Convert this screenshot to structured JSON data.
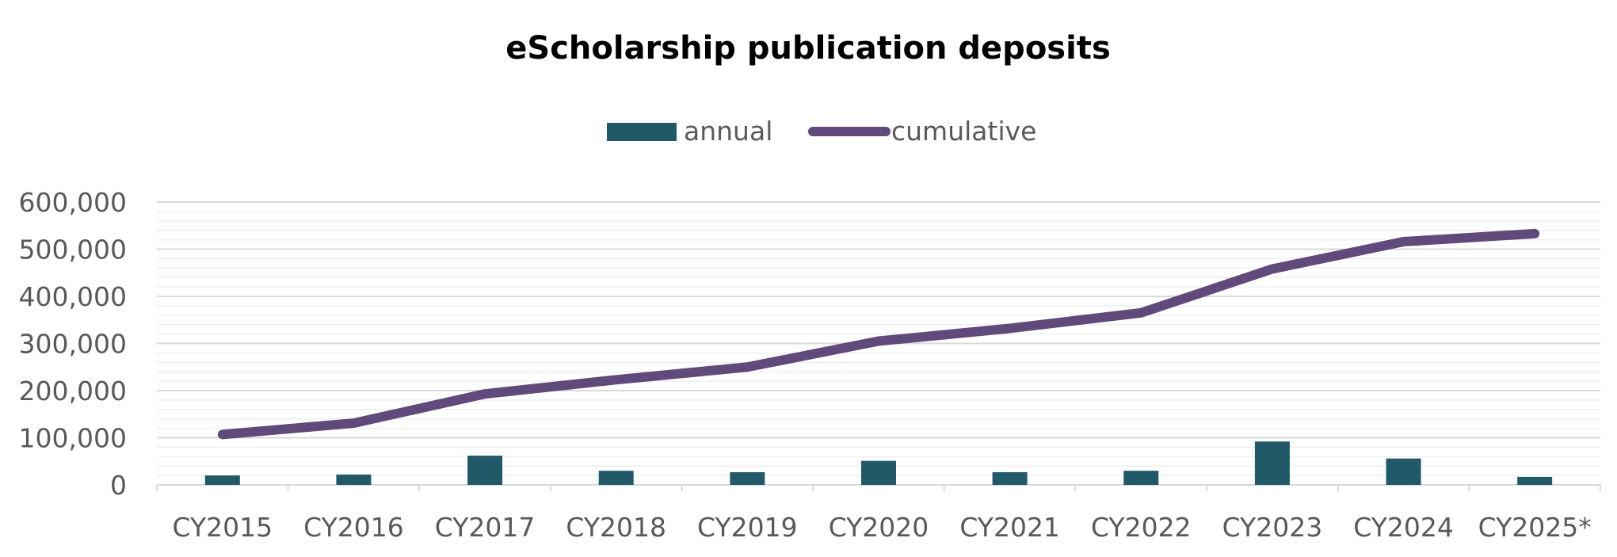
{
  "chart_data": {
    "type": "bar",
    "title": "eScholarship publication deposits",
    "xlabel": "",
    "ylabel": "",
    "ylim": [
      0,
      600000
    ],
    "y_ticks": [
      "0",
      "100,000",
      "200,000",
      "300,000",
      "400,000",
      "500,000",
      "600,000"
    ],
    "y_tick_values": [
      0,
      100000,
      200000,
      300000,
      400000,
      500000,
      600000
    ],
    "grid": true,
    "legend_position": "top-center",
    "categories": [
      "CY2015",
      "CY2016",
      "CY2017",
      "CY2018",
      "CY2019",
      "CY2020",
      "CY2021",
      "CY2022",
      "CY2023",
      "CY2024",
      "CY2025*"
    ],
    "series": [
      {
        "name": "annual",
        "kind": "bar",
        "color": "#215968",
        "values": [
          20000,
          22000,
          62000,
          30000,
          27000,
          51000,
          27000,
          30000,
          92000,
          56000,
          17000
        ]
      },
      {
        "name": "cumulative",
        "kind": "line",
        "color": "#604A7B",
        "values": [
          107000,
          131000,
          193000,
          223000,
          250000,
          305000,
          332000,
          365000,
          458000,
          516000,
          533000
        ]
      }
    ]
  }
}
